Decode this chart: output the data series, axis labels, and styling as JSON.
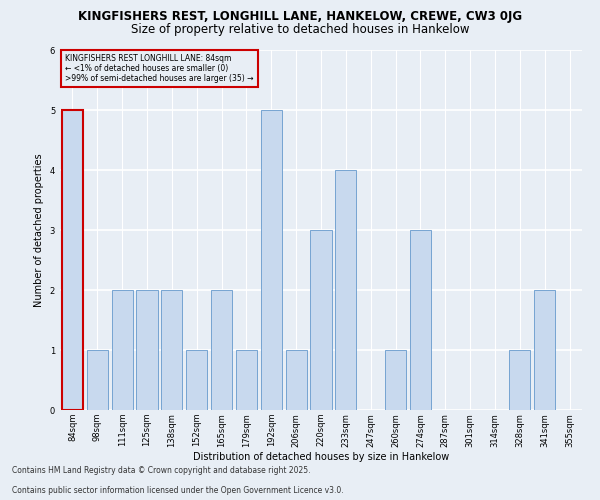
{
  "title_line1": "KINGFISHERS REST, LONGHILL LANE, HANKELOW, CREWE, CW3 0JG",
  "title_line2": "Size of property relative to detached houses in Hankelow",
  "xlabel": "Distribution of detached houses by size in Hankelow",
  "ylabel": "Number of detached properties",
  "categories": [
    "84sqm",
    "98sqm",
    "111sqm",
    "125sqm",
    "138sqm",
    "152sqm",
    "165sqm",
    "179sqm",
    "192sqm",
    "206sqm",
    "220sqm",
    "233sqm",
    "247sqm",
    "260sqm",
    "274sqm",
    "287sqm",
    "301sqm",
    "314sqm",
    "328sqm",
    "341sqm",
    "355sqm"
  ],
  "values": [
    5,
    1,
    2,
    2,
    2,
    1,
    2,
    1,
    5,
    1,
    3,
    4,
    0,
    1,
    3,
    0,
    0,
    0,
    1,
    2,
    0
  ],
  "bar_color": "#c8d9ee",
  "bar_edge_color": "#6699cc",
  "highlight_index": 0,
  "highlight_edge_color": "#cc0000",
  "annotation_box_text": "KINGFISHERS REST LONGHILL LANE: 84sqm\n← <1% of detached houses are smaller (0)\n>99% of semi-detached houses are larger (35) →",
  "annotation_box_edge_color": "#cc0000",
  "ylim": [
    0,
    6
  ],
  "yticks": [
    0,
    1,
    2,
    3,
    4,
    5,
    6
  ],
  "footer_line1": "Contains HM Land Registry data © Crown copyright and database right 2025.",
  "footer_line2": "Contains public sector information licensed under the Open Government Licence v3.0.",
  "bg_color": "#e8eef5",
  "plot_bg_color": "#e8eef5",
  "grid_color": "#ffffff",
  "title_fontsize": 8.5,
  "subtitle_fontsize": 8.5,
  "label_fontsize": 7,
  "tick_fontsize": 6,
  "annotation_fontsize": 5.5,
  "footer_fontsize": 5.5
}
